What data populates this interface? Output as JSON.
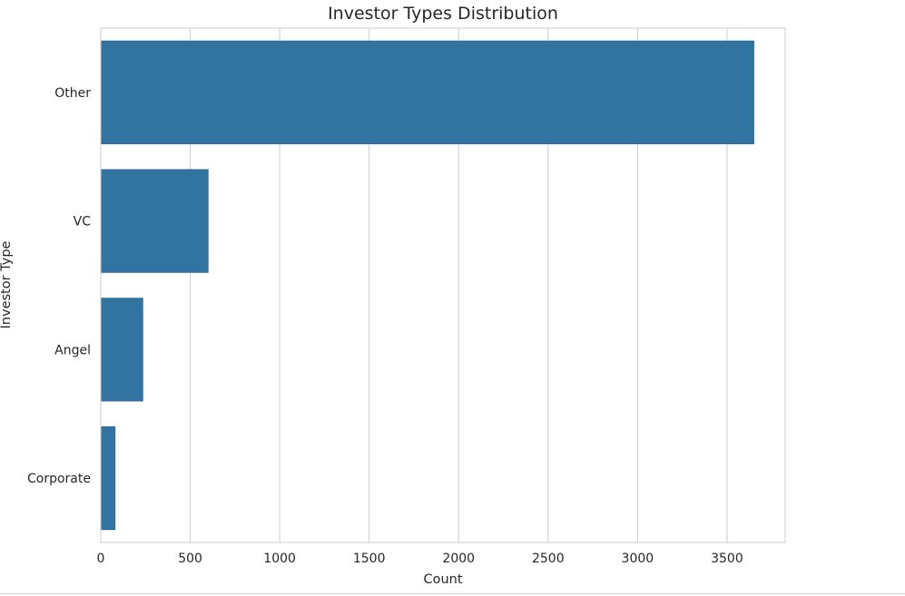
{
  "chart_data": {
    "type": "bar",
    "orientation": "horizontal",
    "title": "Investor Types Distribution",
    "xlabel": "Count",
    "ylabel": "Investor Type",
    "categories": [
      "Other",
      "VC",
      "Angel",
      "Corporate"
    ],
    "values": [
      3650,
      600,
      235,
      80
    ],
    "xlim": [
      0,
      3825
    ],
    "xticks": [
      0,
      500,
      1000,
      1500,
      2000,
      2500,
      3000,
      3500
    ],
    "grid": true,
    "legend": "none",
    "colors": {
      "bar": "#3274a1",
      "bar_edge": "#2c6690",
      "grid": "#cccccc",
      "spine": "#cccccc",
      "text": "#262626",
      "background": "#ffffff"
    }
  }
}
